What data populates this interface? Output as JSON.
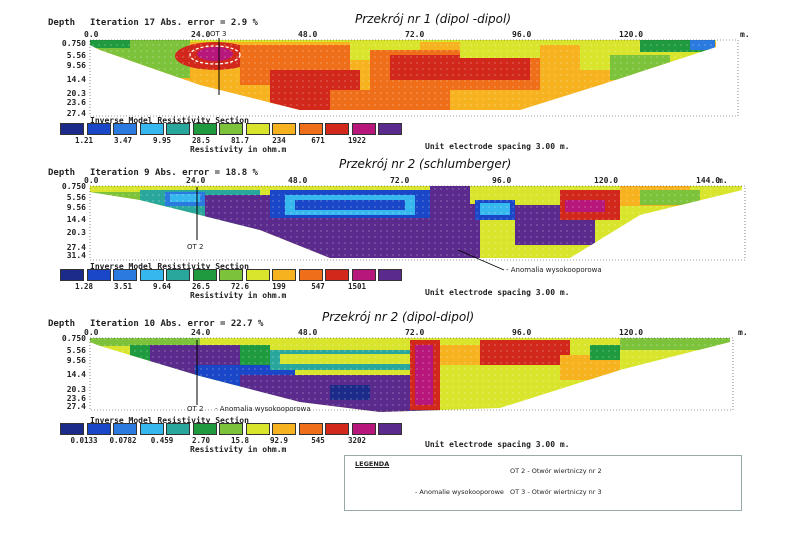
{
  "colors": {
    "scale": [
      "#1c2a8a",
      "#1a46c8",
      "#2a7ae0",
      "#36b8ef",
      "#2aa79c",
      "#1f9a3f",
      "#7cc23a",
      "#d8e52c",
      "#f6b21f",
      "#ef6e19",
      "#d2281b",
      "#b7177a",
      "#5a2a8c"
    ]
  },
  "chart_data": [
    {
      "type": "heatmap",
      "title": "Przekrój nr 1 (dipol -dipol)",
      "iteration_label": "Iteration 17 Abs. error = 2.9 %",
      "depth_label": "Depth",
      "x_ticks": [
        "0.0",
        "24.0",
        "48.0",
        "72.0",
        "96.0",
        "120.0"
      ],
      "x_unit": "m.",
      "depth_ticks": [
        "0.750",
        "5.56",
        "9.56",
        "14.4",
        "20.3",
        "23.6",
        "27.4"
      ],
      "colorbar_title": "Inverse Model Resistivity Section",
      "colorbar_values": [
        "1.21",
        "3.47",
        "9.95",
        "28.5",
        "81.7",
        "234",
        "671",
        "1922"
      ],
      "colorbar_units": "Resistivity in ohm.m",
      "spacing": "Unit electrode spacing 3.00 m.",
      "borehole": "OT 3"
    },
    {
      "type": "heatmap",
      "title": "Przekrój nr 2 (schlumberger)",
      "iteration_label": "Iteration 9 Abs. error = 18.8 %",
      "depth_label": "Depth",
      "x_ticks": [
        "0.0",
        "24.0",
        "48.0",
        "72.0",
        "96.0",
        "120.0",
        "144.0"
      ],
      "x_unit": "m.",
      "depth_ticks": [
        "0.750",
        "5.56",
        "9.56",
        "14.4",
        "20.3",
        "27.4",
        "31.4"
      ],
      "colorbar_title": "Inverse Model Resistivity Section",
      "colorbar_values": [
        "1.28",
        "3.51",
        "9.64",
        "26.5",
        "72.6",
        "199",
        "547",
        "1501"
      ],
      "colorbar_units": "Resistivity in ohm.m",
      "spacing": "Unit electrode spacing 3.00 m.",
      "borehole": "OT 2",
      "annotation": "- Anomalia wysokooporowa"
    },
    {
      "type": "heatmap",
      "title": "Przekrój nr 2 (dipol-dipol)",
      "iteration_label": "Iteration 10 Abs. error = 22.7 %",
      "depth_label": "Depth",
      "x_ticks": [
        "0.0",
        "24.0",
        "48.0",
        "72.0",
        "96.0",
        "120.0"
      ],
      "x_unit": "m.",
      "depth_ticks": [
        "0.750",
        "5.56",
        "9.56",
        "14.4",
        "20.3",
        "23.6",
        "27.4"
      ],
      "colorbar_title": "Inverse Model Resistivity Section",
      "colorbar_values": [
        "0.0133",
        "0.0782",
        "0.459",
        "2.70",
        "15.8",
        "92.9",
        "545",
        "3202"
      ],
      "colorbar_units": "Resistivity in ohm.m",
      "spacing": "Unit electrode spacing 3.00 m.",
      "borehole": "OT 2",
      "annotation": "- Anomalia wysokooporowa"
    }
  ],
  "legend": {
    "title": "LEGENDA",
    "ot2": "OT 2 - Otwór wiertniczy nr 2",
    "ot3": "OT 3 - Otwór wiertniczy nr 3",
    "anomaly": "- Anomalie wysokooporowe"
  }
}
